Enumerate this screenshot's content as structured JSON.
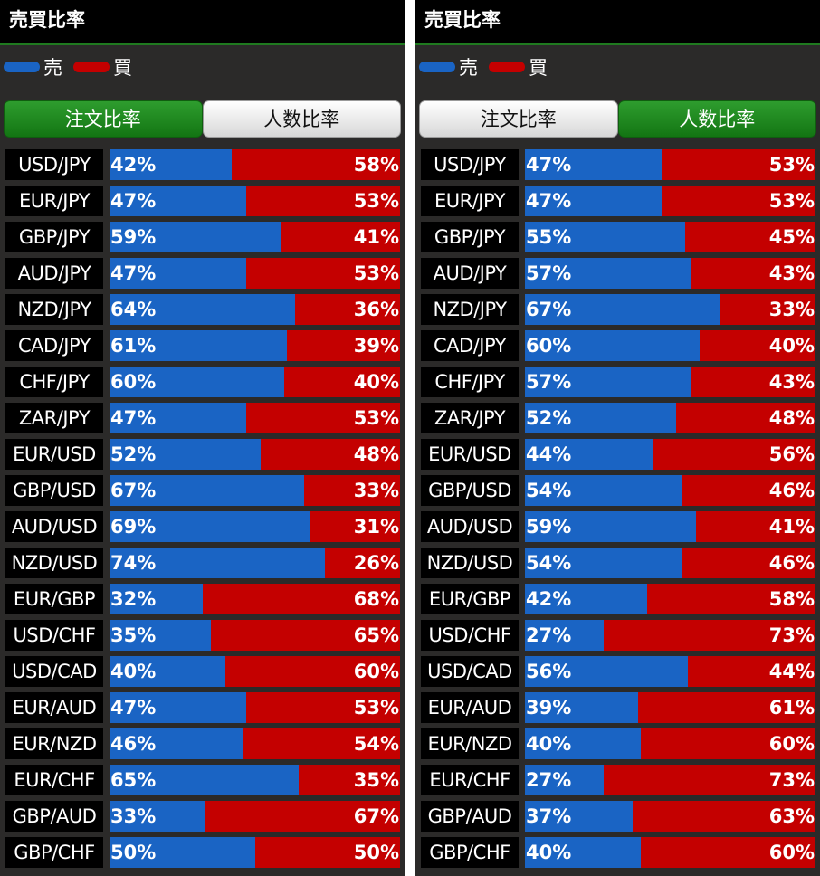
{
  "legend": {
    "sell": "売",
    "buy": "買"
  },
  "colors": {
    "sell": "#1a64c4",
    "buy": "#c40000",
    "active_tab": "#1f8a1f"
  },
  "panels": [
    {
      "title": "売買比率",
      "tabs": [
        {
          "label": "注文比率",
          "active": true
        },
        {
          "label": "人数比率",
          "active": false
        }
      ],
      "rows": [
        {
          "pair": "USD/JPY",
          "sell": "42%",
          "buy": "58%"
        },
        {
          "pair": "EUR/JPY",
          "sell": "47%",
          "buy": "53%"
        },
        {
          "pair": "GBP/JPY",
          "sell": "59%",
          "buy": "41%"
        },
        {
          "pair": "AUD/JPY",
          "sell": "47%",
          "buy": "53%"
        },
        {
          "pair": "NZD/JPY",
          "sell": "64%",
          "buy": "36%"
        },
        {
          "pair": "CAD/JPY",
          "sell": "61%",
          "buy": "39%"
        },
        {
          "pair": "CHF/JPY",
          "sell": "60%",
          "buy": "40%"
        },
        {
          "pair": "ZAR/JPY",
          "sell": "47%",
          "buy": "53%"
        },
        {
          "pair": "EUR/USD",
          "sell": "52%",
          "buy": "48%"
        },
        {
          "pair": "GBP/USD",
          "sell": "67%",
          "buy": "33%"
        },
        {
          "pair": "AUD/USD",
          "sell": "69%",
          "buy": "31%"
        },
        {
          "pair": "NZD/USD",
          "sell": "74%",
          "buy": "26%"
        },
        {
          "pair": "EUR/GBP",
          "sell": "32%",
          "buy": "68%"
        },
        {
          "pair": "USD/CHF",
          "sell": "35%",
          "buy": "65%"
        },
        {
          "pair": "USD/CAD",
          "sell": "40%",
          "buy": "60%"
        },
        {
          "pair": "EUR/AUD",
          "sell": "47%",
          "buy": "53%"
        },
        {
          "pair": "EUR/NZD",
          "sell": "46%",
          "buy": "54%"
        },
        {
          "pair": "EUR/CHF",
          "sell": "65%",
          "buy": "35%"
        },
        {
          "pair": "GBP/AUD",
          "sell": "33%",
          "buy": "67%"
        },
        {
          "pair": "GBP/CHF",
          "sell": "50%",
          "buy": "50%"
        }
      ]
    },
    {
      "title": "売買比率",
      "tabs": [
        {
          "label": "注文比率",
          "active": false
        },
        {
          "label": "人数比率",
          "active": true
        }
      ],
      "rows": [
        {
          "pair": "USD/JPY",
          "sell": "47%",
          "buy": "53%"
        },
        {
          "pair": "EUR/JPY",
          "sell": "47%",
          "buy": "53%"
        },
        {
          "pair": "GBP/JPY",
          "sell": "55%",
          "buy": "45%"
        },
        {
          "pair": "AUD/JPY",
          "sell": "57%",
          "buy": "43%"
        },
        {
          "pair": "NZD/JPY",
          "sell": "67%",
          "buy": "33%"
        },
        {
          "pair": "CAD/JPY",
          "sell": "60%",
          "buy": "40%"
        },
        {
          "pair": "CHF/JPY",
          "sell": "57%",
          "buy": "43%"
        },
        {
          "pair": "ZAR/JPY",
          "sell": "52%",
          "buy": "48%"
        },
        {
          "pair": "EUR/USD",
          "sell": "44%",
          "buy": "56%"
        },
        {
          "pair": "GBP/USD",
          "sell": "54%",
          "buy": "46%"
        },
        {
          "pair": "AUD/USD",
          "sell": "59%",
          "buy": "41%"
        },
        {
          "pair": "NZD/USD",
          "sell": "54%",
          "buy": "46%"
        },
        {
          "pair": "EUR/GBP",
          "sell": "42%",
          "buy": "58%"
        },
        {
          "pair": "USD/CHF",
          "sell": "27%",
          "buy": "73%"
        },
        {
          "pair": "USD/CAD",
          "sell": "56%",
          "buy": "44%"
        },
        {
          "pair": "EUR/AUD",
          "sell": "39%",
          "buy": "61%"
        },
        {
          "pair": "EUR/NZD",
          "sell": "40%",
          "buy": "60%"
        },
        {
          "pair": "EUR/CHF",
          "sell": "27%",
          "buy": "73%"
        },
        {
          "pair": "GBP/AUD",
          "sell": "37%",
          "buy": "63%"
        },
        {
          "pair": "GBP/CHF",
          "sell": "40%",
          "buy": "60%"
        }
      ]
    }
  ]
}
